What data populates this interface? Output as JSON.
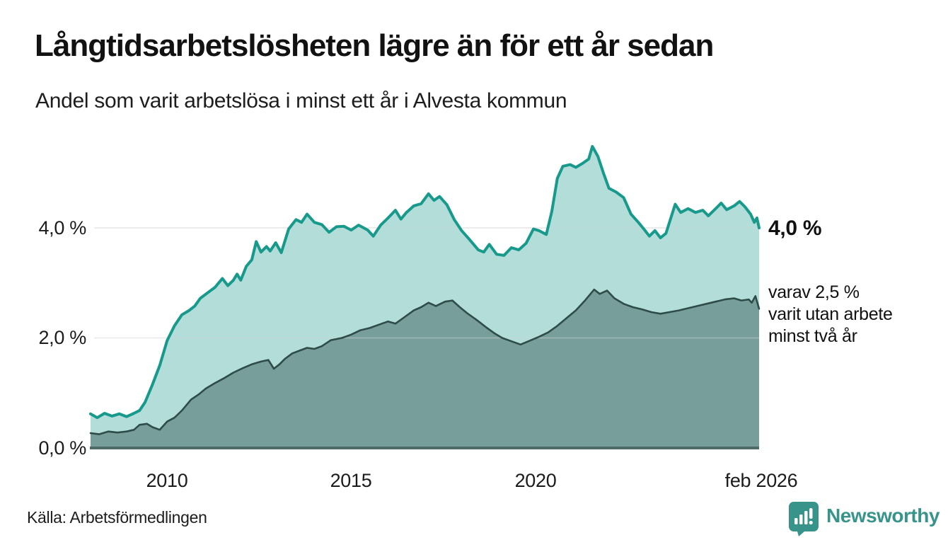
{
  "header": {
    "title": "Långtidsarbetslösheten lägre än för ett år sedan",
    "subtitle": "Andel som varit arbetslösa i minst ett år i Alvesta kommun"
  },
  "annotations": {
    "end_value_label": "4,0 %",
    "secondary_line1": "varav 2,5 %",
    "secondary_line2": "varit utan arbete",
    "secondary_line3": "minst två år"
  },
  "footer": {
    "source": "Källa: Arbetsförmedlingen",
    "brand_name": "Newsworthy",
    "brand_color": "#38948b"
  },
  "chart_data": {
    "type": "area",
    "title": "Långtidsarbetslösheten lägre än för ett år sedan",
    "subtitle": "Andel som varit arbetslösa i minst ett år i Alvesta kommun",
    "unit": "%",
    "x_domain": [
      2007.92,
      2026.08
    ],
    "ylim": [
      0,
      5.6
    ],
    "grid": true,
    "legend_position": "none",
    "y_ticks": [
      {
        "value": 0,
        "label": "0,0 %"
      },
      {
        "value": 2,
        "label": "2,0 %"
      },
      {
        "value": 4,
        "label": "4,0 %"
      }
    ],
    "x_ticks": [
      {
        "value": 2010,
        "label": "2010"
      },
      {
        "value": 2015,
        "label": "2015"
      },
      {
        "value": 2020,
        "label": "2020"
      },
      {
        "value": 2026.08,
        "label": "feb 2026"
      }
    ],
    "gridline_color": "#dbdbdb",
    "baseline_color": "#4c6b66",
    "series": [
      {
        "name": "Arbetslösa minst ett år",
        "end_label": "4,0 %",
        "color": "#17998b",
        "fill": "rgba(23,153,139,0.33)",
        "points": [
          [
            2007.92,
            0.62
          ],
          [
            2008.1,
            0.55
          ],
          [
            2008.3,
            0.63
          ],
          [
            2008.5,
            0.58
          ],
          [
            2008.7,
            0.62
          ],
          [
            2008.9,
            0.57
          ],
          [
            2009.1,
            0.63
          ],
          [
            2009.25,
            0.68
          ],
          [
            2009.4,
            0.83
          ],
          [
            2009.6,
            1.15
          ],
          [
            2009.8,
            1.5
          ],
          [
            2010.0,
            1.95
          ],
          [
            2010.2,
            2.22
          ],
          [
            2010.4,
            2.42
          ],
          [
            2010.6,
            2.5
          ],
          [
            2010.75,
            2.58
          ],
          [
            2010.9,
            2.72
          ],
          [
            2011.1,
            2.82
          ],
          [
            2011.3,
            2.92
          ],
          [
            2011.5,
            3.08
          ],
          [
            2011.65,
            2.95
          ],
          [
            2011.8,
            3.05
          ],
          [
            2011.9,
            3.16
          ],
          [
            2012.0,
            3.05
          ],
          [
            2012.15,
            3.3
          ],
          [
            2012.3,
            3.42
          ],
          [
            2012.42,
            3.75
          ],
          [
            2012.55,
            3.56
          ],
          [
            2012.7,
            3.66
          ],
          [
            2012.8,
            3.58
          ],
          [
            2012.95,
            3.73
          ],
          [
            2013.1,
            3.55
          ],
          [
            2013.3,
            3.98
          ],
          [
            2013.5,
            4.15
          ],
          [
            2013.65,
            4.1
          ],
          [
            2013.8,
            4.25
          ],
          [
            2014.0,
            4.1
          ],
          [
            2014.2,
            4.06
          ],
          [
            2014.4,
            3.92
          ],
          [
            2014.6,
            4.02
          ],
          [
            2014.8,
            4.03
          ],
          [
            2015.0,
            3.96
          ],
          [
            2015.2,
            4.05
          ],
          [
            2015.45,
            3.96
          ],
          [
            2015.6,
            3.85
          ],
          [
            2015.8,
            4.05
          ],
          [
            2016.0,
            4.18
          ],
          [
            2016.2,
            4.32
          ],
          [
            2016.35,
            4.16
          ],
          [
            2016.5,
            4.28
          ],
          [
            2016.7,
            4.4
          ],
          [
            2016.9,
            4.44
          ],
          [
            2017.1,
            4.62
          ],
          [
            2017.25,
            4.5
          ],
          [
            2017.4,
            4.57
          ],
          [
            2017.6,
            4.42
          ],
          [
            2017.8,
            4.15
          ],
          [
            2018.0,
            3.95
          ],
          [
            2018.2,
            3.8
          ],
          [
            2018.45,
            3.6
          ],
          [
            2018.6,
            3.56
          ],
          [
            2018.75,
            3.7
          ],
          [
            2018.95,
            3.52
          ],
          [
            2019.15,
            3.5
          ],
          [
            2019.35,
            3.64
          ],
          [
            2019.55,
            3.6
          ],
          [
            2019.75,
            3.72
          ],
          [
            2019.95,
            3.98
          ],
          [
            2020.1,
            3.95
          ],
          [
            2020.3,
            3.88
          ],
          [
            2020.45,
            4.3
          ],
          [
            2020.6,
            4.9
          ],
          [
            2020.75,
            5.12
          ],
          [
            2020.95,
            5.15
          ],
          [
            2021.1,
            5.1
          ],
          [
            2021.3,
            5.18
          ],
          [
            2021.45,
            5.25
          ],
          [
            2021.55,
            5.48
          ],
          [
            2021.7,
            5.3
          ],
          [
            2021.85,
            5.0
          ],
          [
            2022.0,
            4.72
          ],
          [
            2022.2,
            4.65
          ],
          [
            2022.4,
            4.55
          ],
          [
            2022.6,
            4.25
          ],
          [
            2022.8,
            4.1
          ],
          [
            2022.95,
            3.98
          ],
          [
            2023.1,
            3.85
          ],
          [
            2023.25,
            3.95
          ],
          [
            2023.4,
            3.82
          ],
          [
            2023.55,
            3.9
          ],
          [
            2023.8,
            4.43
          ],
          [
            2023.95,
            4.28
          ],
          [
            2024.15,
            4.35
          ],
          [
            2024.35,
            4.28
          ],
          [
            2024.55,
            4.32
          ],
          [
            2024.7,
            4.22
          ],
          [
            2024.9,
            4.35
          ],
          [
            2025.05,
            4.45
          ],
          [
            2025.2,
            4.33
          ],
          [
            2025.4,
            4.4
          ],
          [
            2025.55,
            4.48
          ],
          [
            2025.7,
            4.38
          ],
          [
            2025.85,
            4.25
          ],
          [
            2025.95,
            4.1
          ],
          [
            2026.02,
            4.18
          ],
          [
            2026.08,
            4.0
          ]
        ]
      },
      {
        "name": "varav utan arbete minst två år",
        "end_label": "2,5 %",
        "color": "#2e4c48",
        "fill": "rgba(35,72,67,0.42)",
        "points": [
          [
            2007.92,
            0.27
          ],
          [
            2008.15,
            0.25
          ],
          [
            2008.4,
            0.3
          ],
          [
            2008.65,
            0.28
          ],
          [
            2008.9,
            0.3
          ],
          [
            2009.1,
            0.33
          ],
          [
            2009.25,
            0.42
          ],
          [
            2009.45,
            0.44
          ],
          [
            2009.6,
            0.38
          ],
          [
            2009.8,
            0.33
          ],
          [
            2010.0,
            0.48
          ],
          [
            2010.2,
            0.55
          ],
          [
            2010.4,
            0.68
          ],
          [
            2010.65,
            0.88
          ],
          [
            2010.85,
            0.97
          ],
          [
            2011.05,
            1.08
          ],
          [
            2011.3,
            1.18
          ],
          [
            2011.55,
            1.27
          ],
          [
            2011.8,
            1.37
          ],
          [
            2012.05,
            1.45
          ],
          [
            2012.3,
            1.52
          ],
          [
            2012.55,
            1.57
          ],
          [
            2012.75,
            1.6
          ],
          [
            2012.9,
            1.44
          ],
          [
            2013.05,
            1.52
          ],
          [
            2013.2,
            1.62
          ],
          [
            2013.4,
            1.72
          ],
          [
            2013.6,
            1.77
          ],
          [
            2013.8,
            1.82
          ],
          [
            2014.0,
            1.8
          ],
          [
            2014.2,
            1.85
          ],
          [
            2014.45,
            1.96
          ],
          [
            2014.75,
            2.0
          ],
          [
            2015.0,
            2.06
          ],
          [
            2015.25,
            2.14
          ],
          [
            2015.5,
            2.18
          ],
          [
            2015.75,
            2.24
          ],
          [
            2016.0,
            2.3
          ],
          [
            2016.2,
            2.26
          ],
          [
            2016.45,
            2.38
          ],
          [
            2016.7,
            2.5
          ],
          [
            2016.9,
            2.56
          ],
          [
            2017.1,
            2.64
          ],
          [
            2017.3,
            2.58
          ],
          [
            2017.55,
            2.66
          ],
          [
            2017.75,
            2.68
          ],
          [
            2017.95,
            2.56
          ],
          [
            2018.15,
            2.45
          ],
          [
            2018.4,
            2.33
          ],
          [
            2018.65,
            2.2
          ],
          [
            2018.9,
            2.08
          ],
          [
            2019.1,
            2.0
          ],
          [
            2019.35,
            1.94
          ],
          [
            2019.6,
            1.88
          ],
          [
            2019.85,
            1.95
          ],
          [
            2020.1,
            2.02
          ],
          [
            2020.35,
            2.1
          ],
          [
            2020.6,
            2.22
          ],
          [
            2020.85,
            2.36
          ],
          [
            2021.1,
            2.5
          ],
          [
            2021.35,
            2.68
          ],
          [
            2021.6,
            2.88
          ],
          [
            2021.75,
            2.8
          ],
          [
            2021.95,
            2.86
          ],
          [
            2022.15,
            2.72
          ],
          [
            2022.4,
            2.62
          ],
          [
            2022.65,
            2.56
          ],
          [
            2022.9,
            2.52
          ],
          [
            2023.15,
            2.47
          ],
          [
            2023.4,
            2.44
          ],
          [
            2023.65,
            2.47
          ],
          [
            2023.9,
            2.5
          ],
          [
            2024.15,
            2.54
          ],
          [
            2024.4,
            2.58
          ],
          [
            2024.65,
            2.62
          ],
          [
            2024.9,
            2.66
          ],
          [
            2025.15,
            2.7
          ],
          [
            2025.4,
            2.72
          ],
          [
            2025.6,
            2.68
          ],
          [
            2025.8,
            2.7
          ],
          [
            2025.88,
            2.64
          ],
          [
            2025.98,
            2.76
          ],
          [
            2026.08,
            2.53
          ]
        ]
      }
    ]
  }
}
